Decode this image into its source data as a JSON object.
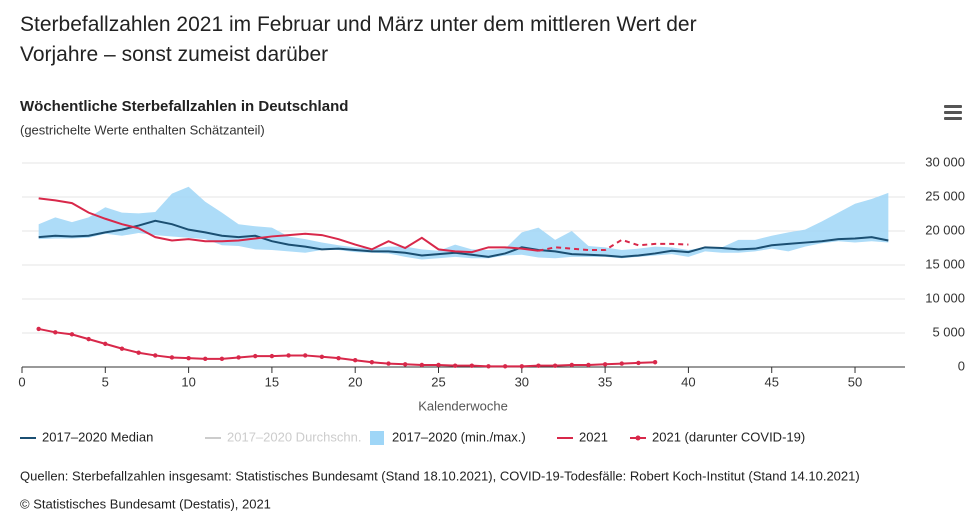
{
  "chart_data": {
    "type": "line",
    "title": "Sterbefallzahlen 2021 im Februar und März unter dem mittleren Wert der Vorjahre – sonst zumeist darüber",
    "subtitle": "Wöchentliche Sterbefallzahlen in Deutschland",
    "note": "(gestrichelte Werte enthalten Schätzanteil)",
    "x_label": "Kalenderwoche",
    "source": "Quellen: Sterbefallzahlen insgesamt: Statistisches Bundesamt (Stand 18.10.2021), COVID-19-Todesfälle: Robert Koch-Institut (Stand 14.10.2021)",
    "credit": "© Statistisches Bundesamt (Destatis), 2021",
    "x": [
      1,
      2,
      3,
      4,
      5,
      6,
      7,
      8,
      9,
      10,
      11,
      12,
      13,
      14,
      15,
      16,
      17,
      18,
      19,
      20,
      21,
      22,
      23,
      24,
      25,
      26,
      27,
      28,
      29,
      30,
      31,
      32,
      33,
      34,
      35,
      36,
      37,
      38,
      39,
      40,
      41,
      42,
      43,
      44,
      45,
      46,
      47,
      48,
      49,
      50,
      51,
      52
    ],
    "xlim": [
      0,
      53
    ],
    "xticks": [
      0,
      5,
      10,
      15,
      20,
      25,
      30,
      35,
      40,
      45,
      50
    ],
    "ylim": [
      0,
      30000
    ],
    "yticks": [
      0,
      {
        "value": 5000,
        "label": "5 000"
      },
      {
        "value": 10000,
        "label": "10 000"
      },
      {
        "value": 15000,
        "label": "15 000"
      },
      {
        "value": 20000,
        "label": "20 000"
      },
      {
        "value": 25000,
        "label": "25 000"
      },
      {
        "value": 30000,
        "label": "30 000"
      }
    ],
    "grid": true,
    "series": [
      {
        "name": "2017–2020 Median",
        "color": "#1b4f72",
        "kind": "line",
        "values": [
          19100,
          19300,
          19200,
          19300,
          19800,
          20200,
          20800,
          21500,
          21000,
          20200,
          19800,
          19300,
          19100,
          19300,
          18500,
          18000,
          17700,
          17300,
          17400,
          17200,
          17000,
          17000,
          16800,
          16400,
          16600,
          16800,
          16500,
          16200,
          16700,
          17600,
          17200,
          17000,
          16600,
          16500,
          16400,
          16200,
          16400,
          16700,
          17100,
          16900,
          17600,
          17500,
          17300,
          17400,
          17900,
          18100,
          18300,
          18500,
          18800,
          18900,
          19100,
          18600
        ]
      },
      {
        "name": "2017–2020 Durchschn.",
        "color": "#cccccc",
        "kind": "line",
        "visible": false
      },
      {
        "name": "2017–2020 (min./max.)",
        "color": "#9fd6f7",
        "kind": "range",
        "low": [
          18800,
          18900,
          18900,
          19000,
          19600,
          19300,
          19700,
          19400,
          19200,
          19000,
          18800,
          17900,
          17800,
          17300,
          17200,
          17000,
          16800,
          17200,
          17200,
          16900,
          16800,
          16700,
          16200,
          15800,
          16000,
          16200,
          16000,
          16000,
          16400,
          16500,
          16100,
          16000,
          16200,
          16200,
          16200,
          16000,
          16200,
          16400,
          16600,
          16200,
          17000,
          16800,
          16800,
          17000,
          17400,
          17000,
          17700,
          18200,
          18500,
          18300,
          18500,
          18300
        ],
        "high": [
          21000,
          22000,
          21300,
          22000,
          23500,
          22700,
          22600,
          22800,
          25500,
          26500,
          24300,
          22700,
          21000,
          20700,
          20500,
          19200,
          18800,
          18300,
          17900,
          17600,
          17400,
          17700,
          17700,
          17300,
          17100,
          18000,
          17300,
          17200,
          17400,
          19800,
          20500,
          18700,
          20000,
          17800,
          17600,
          17200,
          17400,
          17700,
          17600,
          17200,
          17600,
          17600,
          18700,
          18700,
          19300,
          19800,
          20200,
          21400,
          22700,
          24000,
          24700,
          25600
        ]
      },
      {
        "name": "2021",
        "color": "#d8284a",
        "kind": "line",
        "dashed_from": 31,
        "values": [
          24800,
          24500,
          24100,
          22700,
          21800,
          21000,
          20400,
          19100,
          18600,
          18800,
          18500,
          18500,
          18600,
          18900,
          19200,
          19400,
          19600,
          19400,
          18800,
          18000,
          17300,
          18500,
          17500,
          19000,
          17300,
          17000,
          16900,
          17600,
          17600,
          17400,
          17100,
          17600,
          17400,
          17200,
          17200,
          18700,
          17900,
          18100,
          18100,
          18000,
          null,
          null,
          null,
          null,
          null,
          null,
          null,
          null,
          null,
          null,
          null,
          null
        ]
      },
      {
        "name": "2021 (darunter COVID-19)",
        "color": "#d8284a",
        "kind": "line",
        "markers": true,
        "values": [
          5600,
          5100,
          4800,
          4100,
          3400,
          2700,
          2100,
          1700,
          1400,
          1300,
          1200,
          1200,
          1400,
          1600,
          1600,
          1700,
          1700,
          1500,
          1300,
          1000,
          700,
          500,
          400,
          300,
          300,
          200,
          200,
          100,
          100,
          100,
          200,
          200,
          300,
          300,
          400,
          500,
          600,
          700,
          null,
          null,
          null,
          null,
          null,
          null,
          null,
          null,
          null,
          null,
          null,
          null,
          null,
          null
        ]
      }
    ]
  }
}
